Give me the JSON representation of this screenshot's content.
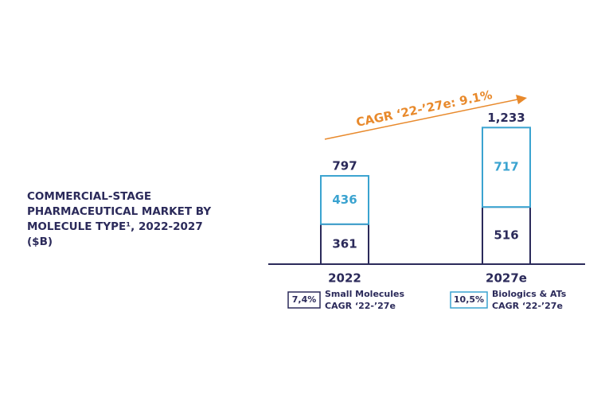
{
  "chart_data": {
    "type": "stacked_bar",
    "title": "COMMERCIAL-STAGE PHARMACEUTICAL MARKET BY MOLECULE TYPE¹, 2022-2027 ($B)",
    "annotation": "CAGR ‘22-’27e: 9.1%",
    "annotation_color": "#e8892b",
    "categories": [
      "2022",
      "2027e"
    ],
    "totals": [
      797,
      1233
    ],
    "total_labels": [
      "797",
      "1,233"
    ],
    "series": [
      {
        "name": "Small Molecules",
        "color": "#2b2a5a",
        "values": [
          361,
          516
        ],
        "cagr": "7,4%"
      },
      {
        "name": "Biologics & ATs",
        "color": "#3aa3d0",
        "values": [
          436,
          717
        ],
        "cagr": "10,5%"
      }
    ],
    "legend_caption": "CAGR ‘22-’27e",
    "ylim": [
      0,
      1300
    ]
  }
}
